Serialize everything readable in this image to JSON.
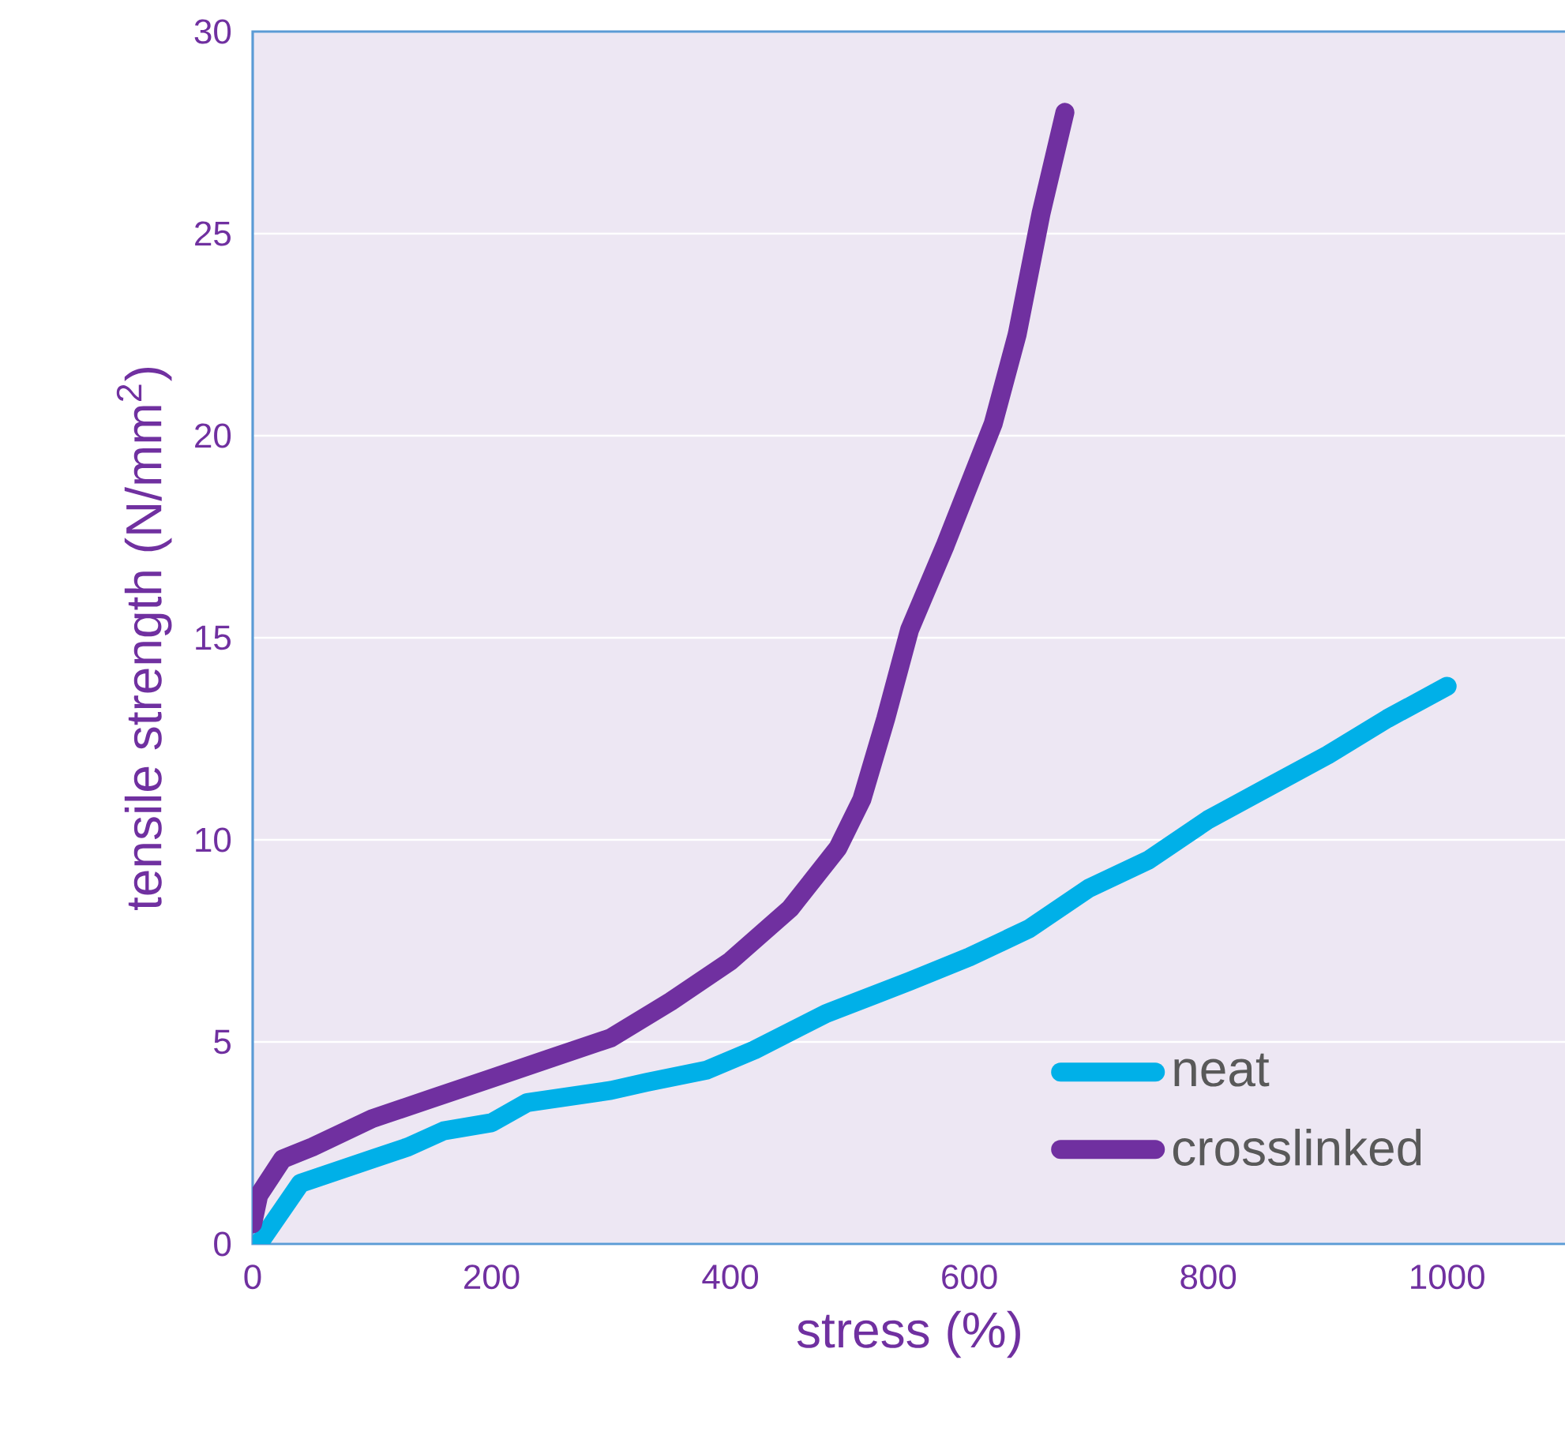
{
  "chart_data": {
    "type": "line",
    "xlabel": "stress (%)",
    "ylabel": "tensile strength (N/mm$^{2}$)",
    "xlim": [
      0,
      1100
    ],
    "ylim": [
      0,
      30
    ],
    "xticks": [
      0,
      200,
      400,
      600,
      800,
      1000
    ],
    "yticks": [
      0,
      5,
      10,
      15,
      20,
      25,
      30
    ],
    "grid": "y",
    "legend": "bottom right",
    "line_style": "solid",
    "series": [
      {
        "name": "neat",
        "color": "#00b0e8",
        "x": [
          5,
          40,
          100,
          130,
          160,
          200,
          230,
          300,
          330,
          380,
          420,
          480,
          550,
          600,
          650,
          700,
          750,
          800,
          850,
          900,
          950,
          1000
        ],
        "values": [
          0,
          1.5,
          2.1,
          2.4,
          2.8,
          3.0,
          3.5,
          3.8,
          4.0,
          4.3,
          4.8,
          5.7,
          6.5,
          7.1,
          7.8,
          8.8,
          9.5,
          10.5,
          11.3,
          12.1,
          13.0,
          13.8
        ]
      },
      {
        "name": "crosslinked",
        "color": "#7030a0",
        "x": [
          0,
          5,
          25,
          50,
          100,
          150,
          200,
          250,
          300,
          350,
          400,
          450,
          490,
          510,
          530,
          550,
          580,
          620,
          640,
          660,
          680
        ],
        "values": [
          0.5,
          1.2,
          2.1,
          2.4,
          3.1,
          3.6,
          4.1,
          4.6,
          5.1,
          6.0,
          7.0,
          8.3,
          9.8,
          11.0,
          13.0,
          15.2,
          17.3,
          20.3,
          22.5,
          25.5,
          28.0
        ]
      }
    ]
  }
}
